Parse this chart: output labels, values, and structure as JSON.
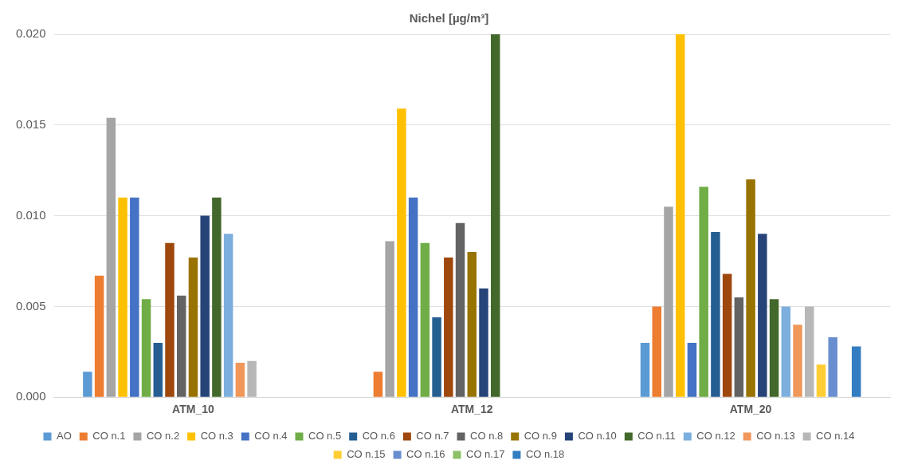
{
  "chart_data": {
    "type": "bar",
    "title": "Nichel [µg/m³]",
    "categories": [
      "ATM_10",
      "ATM_12",
      "ATM_20"
    ],
    "ylim": [
      0,
      0.02
    ],
    "yticks": [
      {
        "value": 0,
        "label": "0.000"
      },
      {
        "value": 0.005,
        "label": "0.005"
      },
      {
        "value": 0.01,
        "label": "0.010"
      },
      {
        "value": 0.015,
        "label": "0.015"
      },
      {
        "value": 0.02,
        "label": "0.020"
      }
    ],
    "grid": "y",
    "legend": "bottom",
    "series": [
      {
        "name": "AO",
        "color": "#5b9bd5",
        "values": [
          0.0014,
          null,
          0.003
        ]
      },
      {
        "name": "CO n.1",
        "color": "#ed7d31",
        "values": [
          0.0067,
          0.0014,
          0.005
        ]
      },
      {
        "name": "CO n.2",
        "color": "#a5a5a5",
        "values": [
          0.0154,
          0.0086,
          0.0105
        ]
      },
      {
        "name": "CO n.3",
        "color": "#ffc000",
        "values": [
          0.011,
          0.0159,
          0.02
        ]
      },
      {
        "name": "CO n.4",
        "color": "#4472c4",
        "values": [
          0.011,
          0.011,
          0.003
        ]
      },
      {
        "name": "CO n.5",
        "color": "#70ad47",
        "values": [
          0.0054,
          0.0085,
          0.0116
        ]
      },
      {
        "name": "CO n.6",
        "color": "#255e91",
        "values": [
          0.003,
          0.0044,
          0.0091
        ]
      },
      {
        "name": "CO n.7",
        "color": "#9e480e",
        "values": [
          0.0085,
          0.0077,
          0.0068
        ]
      },
      {
        "name": "CO n.8",
        "color": "#636363",
        "values": [
          0.0056,
          0.0096,
          0.0055
        ]
      },
      {
        "name": "CO n.9",
        "color": "#997300",
        "values": [
          0.0077,
          0.008,
          0.012
        ]
      },
      {
        "name": "CO n.10",
        "color": "#264478",
        "values": [
          0.01,
          0.006,
          0.009
        ]
      },
      {
        "name": "CO n.11",
        "color": "#43682b",
        "values": [
          0.011,
          0.02,
          0.0054
        ]
      },
      {
        "name": "CO n.12",
        "color": "#7cafdd",
        "values": [
          0.009,
          null,
          0.005
        ]
      },
      {
        "name": "CO n.13",
        "color": "#f1975a",
        "values": [
          0.0019,
          null,
          0.004
        ]
      },
      {
        "name": "CO n.14",
        "color": "#b7b7b7",
        "values": [
          0.002,
          null,
          0.005
        ]
      },
      {
        "name": "CO n.15",
        "color": "#ffcd33",
        "values": [
          null,
          null,
          0.0018
        ]
      },
      {
        "name": "CO n.16",
        "color": "#698ed0",
        "values": [
          null,
          null,
          0.0033
        ]
      },
      {
        "name": "CO n.17",
        "color": "#8cc168",
        "values": [
          null,
          null,
          null
        ]
      },
      {
        "name": "CO n.18",
        "color": "#327dc2",
        "values": [
          null,
          null,
          0.0028
        ]
      }
    ]
  }
}
